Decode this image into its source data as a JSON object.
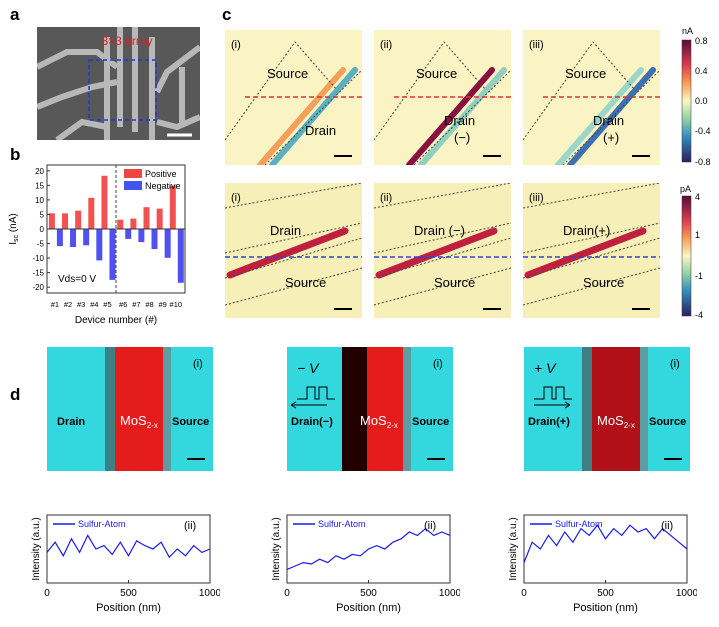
{
  "panels": {
    "a": "a",
    "b": "b",
    "c": "c",
    "d": "d"
  },
  "sem": {
    "label": "3×3 array"
  },
  "chart_data": {
    "type": "bar",
    "categories": [
      "#1",
      "#2",
      "#3",
      "#4",
      "#5",
      "#6",
      "#7",
      "#8",
      "#9",
      "#10"
    ],
    "series": [
      {
        "name": "Positive",
        "values": [
          5.4,
          5.4,
          6.3,
          10.7,
          18.3,
          3.2,
          3.6,
          7.5,
          7.0,
          14.9
        ],
        "color": "#ee3333"
      },
      {
        "name": "Negative",
        "values": [
          -5.9,
          -6.2,
          -5.6,
          -10.8,
          -17.5,
          -3.4,
          -4.5,
          -6.9,
          -9.9,
          -18.5
        ],
        "color": "#3333ee"
      }
    ],
    "xlabel": "Device number (#)",
    "ylabel": "Isc (nA)",
    "ylabel_main": "I",
    "ylabel_sub": "sc",
    "ylabel_unit": " (nA)",
    "ylim": [
      -22,
      22
    ],
    "yticks": [
      -20,
      -15,
      -10,
      -5,
      0,
      5,
      10,
      15,
      20
    ],
    "annotation": "Vds=0 V",
    "legend": "top-right"
  },
  "c_top": [
    {
      "tag": "(i)",
      "source": "Source",
      "drain": "Drain",
      "drain2": ""
    },
    {
      "tag": "(ii)",
      "source": "Source",
      "drain": "Drain",
      "drain2": "(−)"
    },
    {
      "tag": "(iii)",
      "source": "Source",
      "drain": "Drain",
      "drain2": "(+)"
    }
  ],
  "c_bottom": [
    {
      "tag": "(i)",
      "source": "Source",
      "drain": "Drain"
    },
    {
      "tag": "(ii)",
      "source": "Source",
      "drain": "Drain (−)"
    },
    {
      "tag": "(iii)",
      "source": "Source",
      "drain": "Drain(+)"
    }
  ],
  "colorbar_top": {
    "unit": "nA",
    "ticks": [
      "0.8",
      "0.4",
      "0.0",
      "-0.4",
      "-0.8"
    ]
  },
  "colorbar_bottom": {
    "unit": "pA",
    "ticks": [
      "4",
      "1",
      "-1",
      "-4"
    ]
  },
  "d_maps": [
    {
      "tag": "(i)",
      "left": "Drain",
      "center_main": "MoS",
      "center_sub": "2-x",
      "right": "Source",
      "bias": ""
    },
    {
      "tag": "(i)",
      "left": "Drain(−)",
      "center_main": "MoS",
      "center_sub": "2-x",
      "right": "Source",
      "bias": "− V"
    },
    {
      "tag": "(i)",
      "left": "Drain(+)",
      "center_main": "MoS",
      "center_sub": "2-x",
      "right": "Source",
      "bias": "+ V"
    }
  ],
  "d_plots": {
    "tag": "(ii)",
    "legend": "Sulfur-Atom",
    "xlabel": "Position (nm)",
    "ylabel": "Intensity (a.u.)",
    "xticks": [
      "0",
      "500",
      "1000"
    ],
    "series": [
      {
        "x": [
          0,
          50,
          100,
          150,
          200,
          250,
          300,
          350,
          400,
          450,
          500,
          550,
          600,
          650,
          700,
          750,
          800,
          850,
          900,
          950,
          1000
        ],
        "y": [
          0.45,
          0.6,
          0.4,
          0.65,
          0.45,
          0.7,
          0.5,
          0.55,
          0.42,
          0.6,
          0.4,
          0.62,
          0.55,
          0.5,
          0.6,
          0.38,
          0.5,
          0.4,
          0.55,
          0.45,
          0.5
        ]
      },
      {
        "x": [
          0,
          50,
          100,
          150,
          200,
          250,
          300,
          350,
          400,
          450,
          500,
          550,
          600,
          650,
          700,
          750,
          800,
          850,
          900,
          950,
          1000
        ],
        "y": [
          0.2,
          0.25,
          0.3,
          0.28,
          0.35,
          0.3,
          0.4,
          0.35,
          0.42,
          0.4,
          0.5,
          0.55,
          0.5,
          0.6,
          0.65,
          0.75,
          0.7,
          0.8,
          0.7,
          0.75,
          0.7
        ]
      },
      {
        "x": [
          0,
          50,
          100,
          150,
          200,
          250,
          300,
          350,
          400,
          450,
          500,
          550,
          600,
          650,
          700,
          750,
          800,
          850,
          900,
          950,
          1000
        ],
        "y": [
          0.3,
          0.6,
          0.5,
          0.7,
          0.55,
          0.75,
          0.6,
          0.8,
          0.7,
          0.85,
          0.65,
          0.8,
          0.7,
          0.85,
          0.75,
          0.8,
          0.65,
          0.8,
          0.7,
          0.6,
          0.5
        ]
      }
    ]
  }
}
